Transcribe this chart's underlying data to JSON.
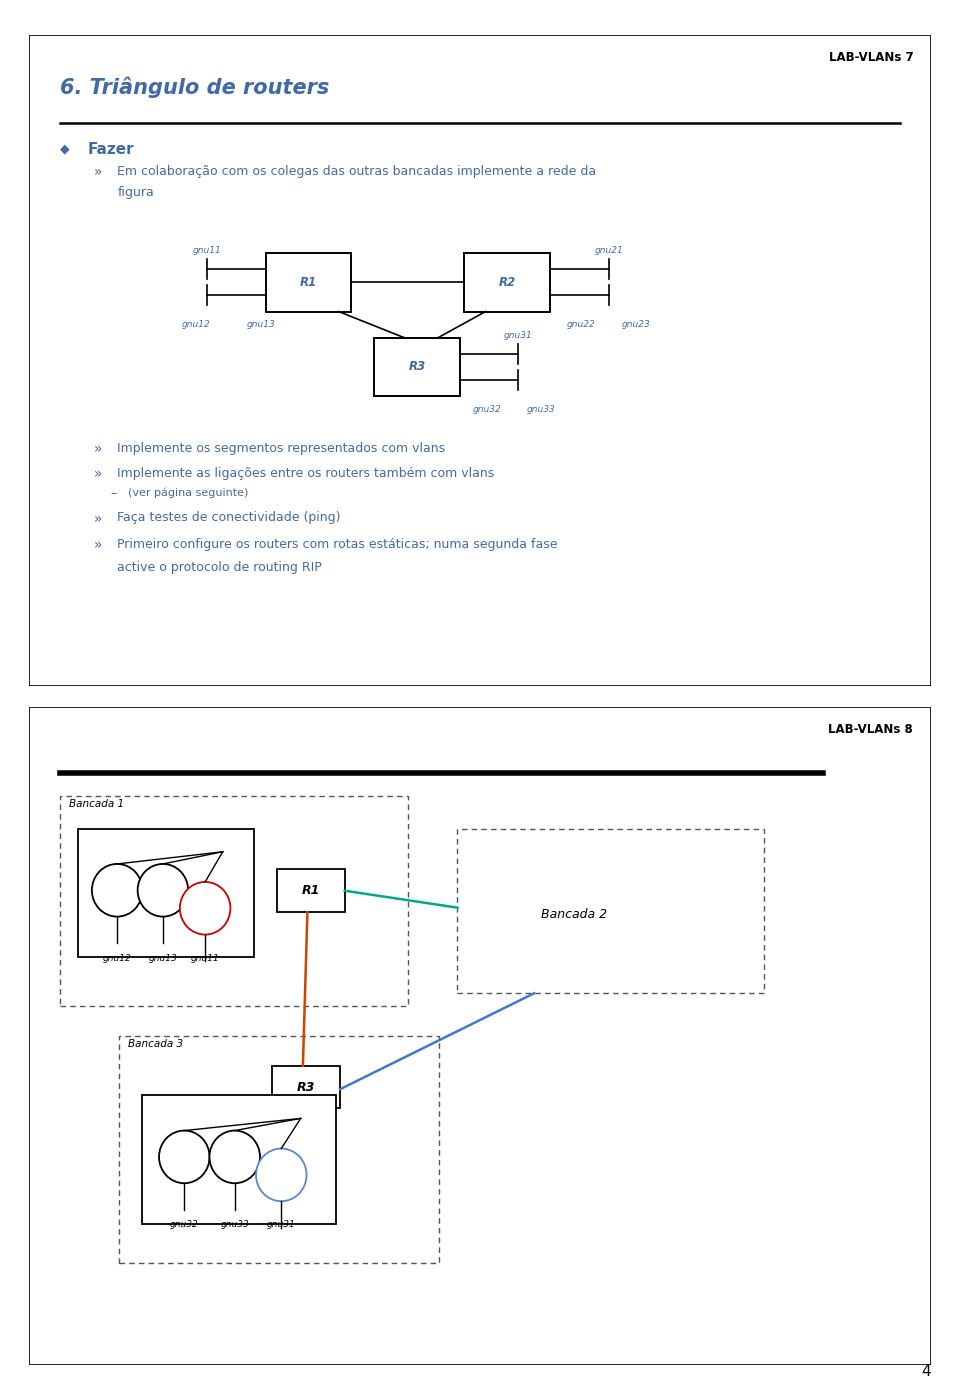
{
  "page_bg": "#ffffff",
  "slide1": {
    "border_color": "#000000",
    "header_label": "LAB-VLANs 7",
    "title": "6. Triângulo de routers",
    "title_color": "#4169aa",
    "text_color": "#4169aa",
    "bullet1": "Fazer",
    "sub1_line1": "Em colaboração com os colegas das outras bancadas implemente a rede da",
    "sub1_line2": "figura",
    "sub2": "Implemente os segmentos representados com vlans",
    "sub3": "Implemente as ligações entre os routers também com vlans",
    "sub3b": "(ver página seguinte)",
    "sub4": "Faça testes de conectividade (ping)",
    "sub5a": "Primeiro configure os routers com rotas estáticas; numa segunda fase",
    "sub5b": "active o protocolo de routing RIP",
    "diagram_line_color": "#000000",
    "diagram_text_color": "#4169aa"
  },
  "slide2": {
    "border_color": "#000000",
    "header_label": "LAB-VLANs 8",
    "bancada1_label": "Bancada 1",
    "bancada2_label": "Bancada 2",
    "bancada3_label": "Bancada 3",
    "r1_label": "R1",
    "r3_label": "R3",
    "gnu12_label": "gnu12",
    "gnu13_label": "gnu13",
    "gnu11_label": "gnu11",
    "gnu32_label": "gnu32",
    "gnu33_label": "gnu33",
    "gnu31_label": "gnu31",
    "line_r1_r2_color": "#00aa88",
    "line_r1_r3_color": "#cc4400",
    "line_r2_r3_color": "#4477cc",
    "node_edge_black": "#000000",
    "red_node_color": "#cc0000",
    "blue_node_color": "#5588cc"
  },
  "footer_number": "4"
}
